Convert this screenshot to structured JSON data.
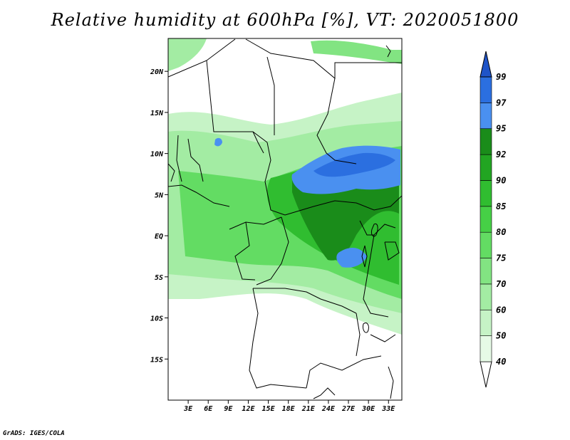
{
  "title": "Relative humidity at 600hPa [%], VT: 2020051800",
  "credit": "GrADS: IGES/COLA",
  "map": {
    "lat_ticks": [
      "20N",
      "15N",
      "10N",
      "5N",
      "EQ",
      "5S",
      "10S",
      "15S"
    ],
    "lat_values": [
      20,
      15,
      10,
      5,
      0,
      -5,
      -10,
      -15
    ],
    "lon_ticks": [
      "3E",
      "6E",
      "9E",
      "12E",
      "15E",
      "18E",
      "21E",
      "24E",
      "27E",
      "30E",
      "33E"
    ],
    "lon_values": [
      3,
      6,
      9,
      12,
      15,
      18,
      21,
      24,
      27,
      30,
      33
    ],
    "lon_range": [
      0,
      35
    ],
    "lat_range": [
      -20,
      24
    ]
  },
  "colorbar": {
    "levels": [
      "40",
      "50",
      "60",
      "70",
      "75",
      "80",
      "85",
      "90",
      "92",
      "95",
      "97",
      "99"
    ],
    "colors": [
      "#ffffff",
      "#e6fae6",
      "#c6f3c6",
      "#a3eca3",
      "#82e482",
      "#63dc63",
      "#46d046",
      "#30bd30",
      "#22a522",
      "#1a8c1a",
      "#4a90f0",
      "#2b6fe0",
      "#1f54c8"
    ]
  }
}
